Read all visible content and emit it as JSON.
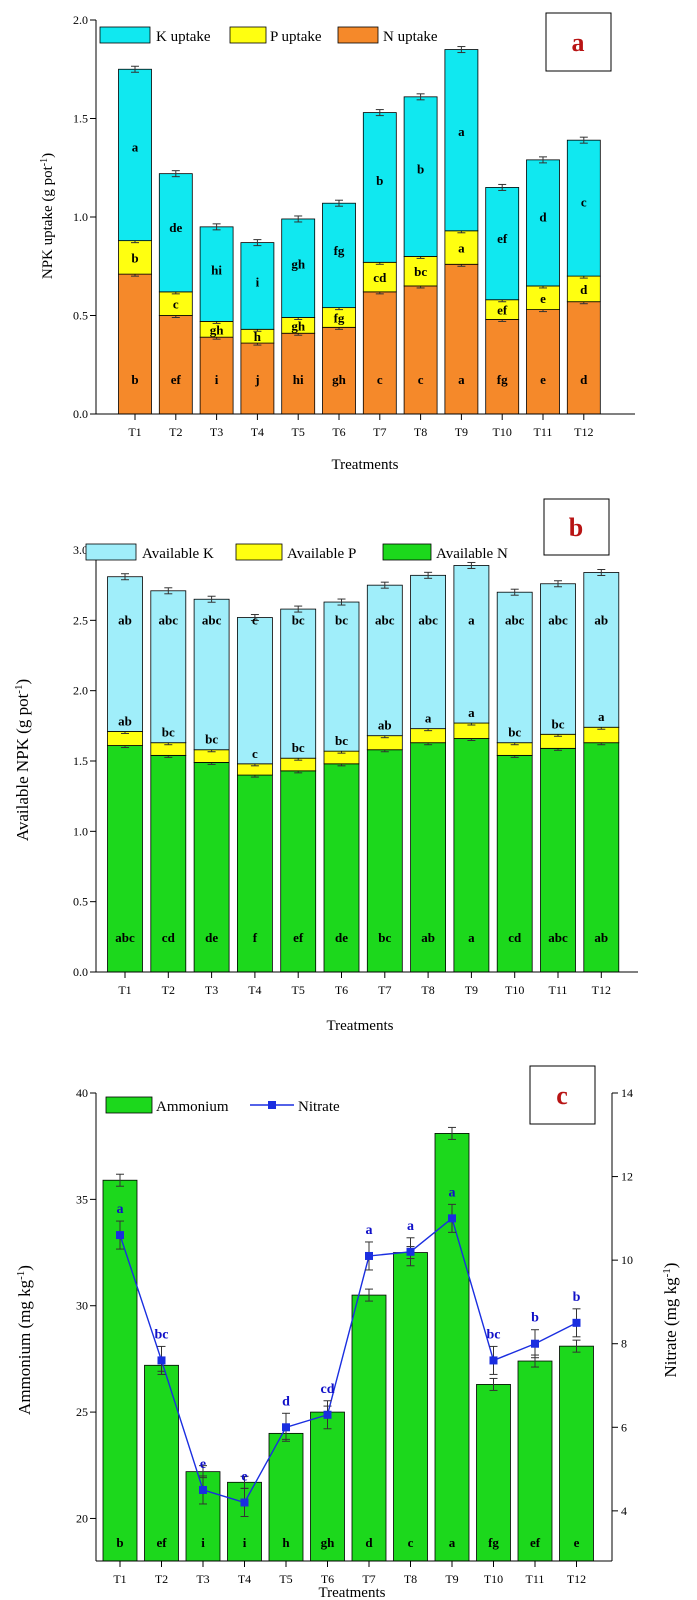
{
  "chart_data": [
    {
      "type": "bar",
      "stacked": true,
      "panel_label": "a",
      "xlabel": "Treatments",
      "ylabel": "NPK uptake (g pot",
      "ylabel_sup": "-1",
      "ylim": [
        0,
        2.0
      ],
      "yticks": [
        "0.0",
        "0.5",
        "1.0",
        "1.5",
        "2.0"
      ],
      "categories": [
        "T1",
        "T2",
        "T3",
        "T4",
        "T5",
        "T6",
        "T7",
        "T8",
        "T9",
        "T10",
        "T11",
        "T12"
      ],
      "legend": [
        "K uptake",
        "P uptake",
        "N uptake"
      ],
      "series": [
        {
          "name": "N uptake",
          "color": "#f5892a",
          "values": [
            0.71,
            0.5,
            0.39,
            0.36,
            0.41,
            0.44,
            0.62,
            0.65,
            0.76,
            0.48,
            0.53,
            0.57
          ],
          "letters": [
            "b",
            "ef",
            "i",
            "j",
            "hi",
            "gh",
            "c",
            "c",
            "a",
            "fg",
            "e",
            "d"
          ]
        },
        {
          "name": "P uptake",
          "color": "#ffff10",
          "values": [
            0.17,
            0.12,
            0.08,
            0.07,
            0.08,
            0.1,
            0.15,
            0.15,
            0.17,
            0.1,
            0.12,
            0.13
          ],
          "letters": [
            "b",
            "c",
            "gh",
            "h",
            "gh",
            "fg",
            "cd",
            "bc",
            "a",
            "ef",
            "e",
            "d"
          ]
        },
        {
          "name": "K uptake",
          "color": "#10e8f0",
          "values": [
            0.87,
            0.6,
            0.48,
            0.44,
            0.5,
            0.53,
            0.76,
            0.81,
            0.92,
            0.57,
            0.64,
            0.69
          ],
          "letters": [
            "a",
            "de",
            "hi",
            "i",
            "gh",
            "fg",
            "b",
            "b",
            "a",
            "ef",
            "d",
            "c"
          ]
        }
      ]
    },
    {
      "type": "bar",
      "stacked": true,
      "panel_label": "b",
      "xlabel": "Treatments",
      "ylabel": "Available NPK (g pot",
      "ylabel_sup": "-1",
      "ylim": [
        0,
        3.0
      ],
      "yticks": [
        "0.0",
        "0.5",
        "1.0",
        "1.5",
        "2.0",
        "2.5",
        "3.0"
      ],
      "categories": [
        "T1",
        "T2",
        "T3",
        "T4",
        "T5",
        "T6",
        "T7",
        "T8",
        "T9",
        "T10",
        "T11",
        "T12"
      ],
      "legend": [
        "Available K",
        "Available P",
        "Available N"
      ],
      "series": [
        {
          "name": "Available N",
          "color": "#1cd81c",
          "values": [
            1.61,
            1.54,
            1.49,
            1.4,
            1.43,
            1.48,
            1.58,
            1.63,
            1.66,
            1.54,
            1.59,
            1.63
          ],
          "letters": [
            "abc",
            "cd",
            "de",
            "f",
            "ef",
            "de",
            "bc",
            "ab",
            "a",
            "cd",
            "abc",
            "ab"
          ]
        },
        {
          "name": "Available P",
          "color": "#ffff10",
          "values": [
            0.1,
            0.09,
            0.09,
            0.08,
            0.09,
            0.09,
            0.1,
            0.1,
            0.11,
            0.09,
            0.1,
            0.11
          ],
          "letters": [
            "ab",
            "bc",
            "bc",
            "c",
            "bc",
            "bc",
            "ab",
            "a",
            "a",
            "bc",
            "bc",
            "a"
          ]
        },
        {
          "name": "Available K",
          "color": "#a0eefa",
          "values": [
            1.1,
            1.08,
            1.07,
            1.04,
            1.06,
            1.06,
            1.07,
            1.09,
            1.12,
            1.07,
            1.07,
            1.1
          ],
          "letters": [
            "ab",
            "abc",
            "abc",
            "c",
            "bc",
            "bc",
            "abc",
            "abc",
            "a",
            "abc",
            "abc",
            "ab"
          ]
        }
      ]
    },
    {
      "type": "bar+line",
      "panel_label": "c",
      "xlabel": "Treatments",
      "ylabel": "Ammonium (mg kg",
      "ylabel_sup": "-1",
      "y2label": "Nitrate (mg kg",
      "y2label_sup": "-1",
      "ylim": [
        18,
        40
      ],
      "yticks": [
        "20",
        "25",
        "30",
        "35",
        "40"
      ],
      "y2lim": [
        2.8,
        14
      ],
      "y2ticks": [
        "4",
        "6",
        "8",
        "10",
        "12",
        "14"
      ],
      "categories": [
        "T1",
        "T2",
        "T3",
        "T4",
        "T5",
        "T6",
        "T7",
        "T8",
        "T9",
        "T10",
        "T11",
        "T12"
      ],
      "legend": [
        "Ammonium",
        "Nitrate"
      ],
      "series": [
        {
          "name": "Ammonium",
          "type": "bar",
          "color": "#1cd81c",
          "values": [
            35.9,
            27.2,
            22.2,
            21.7,
            24.0,
            25.0,
            30.5,
            32.5,
            38.1,
            26.3,
            27.4,
            28.1
          ],
          "letters": [
            "b",
            "ef",
            "i",
            "i",
            "h",
            "gh",
            "d",
            "c",
            "a",
            "fg",
            "ef",
            "e"
          ]
        },
        {
          "name": "Nitrate",
          "type": "line",
          "color": "#1a2ee0",
          "values": [
            10.6,
            7.6,
            4.5,
            4.2,
            6.0,
            6.3,
            10.1,
            10.2,
            11.0,
            7.6,
            8.0,
            8.5
          ],
          "letters": [
            "a",
            "bc",
            "e",
            "e",
            "d",
            "cd",
            "a",
            "a",
            "a",
            "bc",
            "b",
            "b"
          ]
        }
      ]
    }
  ]
}
